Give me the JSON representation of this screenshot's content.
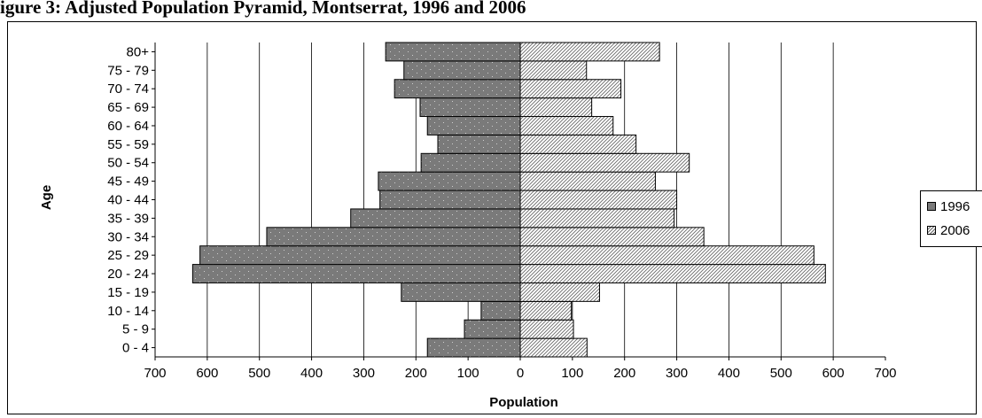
{
  "heading_partial": "igure 3: Adjusted Population Pyramid, Montserrat, 1996 and 2006",
  "chart_data": {
    "type": "bar",
    "orientation": "horizontal-pyramid",
    "title": "",
    "xlabel": "Population",
    "ylabel": "Age",
    "categories": [
      "0 - 4",
      "5 - 9",
      "10 - 14",
      "15 - 19",
      "20 - 24",
      "25 - 29",
      "30 - 34",
      "35 - 39",
      "40 - 44",
      "45 - 49",
      "50 - 54",
      "55 - 59",
      "60 - 64",
      "65 - 69",
      "70 - 74",
      "75 - 79",
      "80+"
    ],
    "xlim": [
      -700,
      700
    ],
    "x_ticks": [
      -700,
      -600,
      -500,
      -400,
      -300,
      -200,
      -100,
      0,
      100,
      200,
      300,
      400,
      500,
      600,
      700
    ],
    "x_tick_labels": [
      "700",
      "600",
      "500",
      "400",
      "300",
      "200",
      "100",
      "0",
      "100",
      "200",
      "300",
      "400",
      "500",
      "600",
      "700"
    ],
    "grid": "vertical",
    "legend_position": "right",
    "series": [
      {
        "name": "1996",
        "side": "left",
        "color": "#7a7a7a",
        "pattern": "dots",
        "values": [
          178,
          107,
          75,
          228,
          628,
          614,
          486,
          325,
          269,
          272,
          190,
          158,
          178,
          192,
          241,
          223,
          258
        ]
      },
      {
        "name": "2006",
        "side": "right",
        "color": "#ffffff",
        "pattern": "diagonal-hatch",
        "values": [
          128,
          102,
          98,
          152,
          585,
          563,
          352,
          295,
          300,
          259,
          324,
          222,
          178,
          137,
          193,
          127,
          267
        ]
      }
    ]
  }
}
